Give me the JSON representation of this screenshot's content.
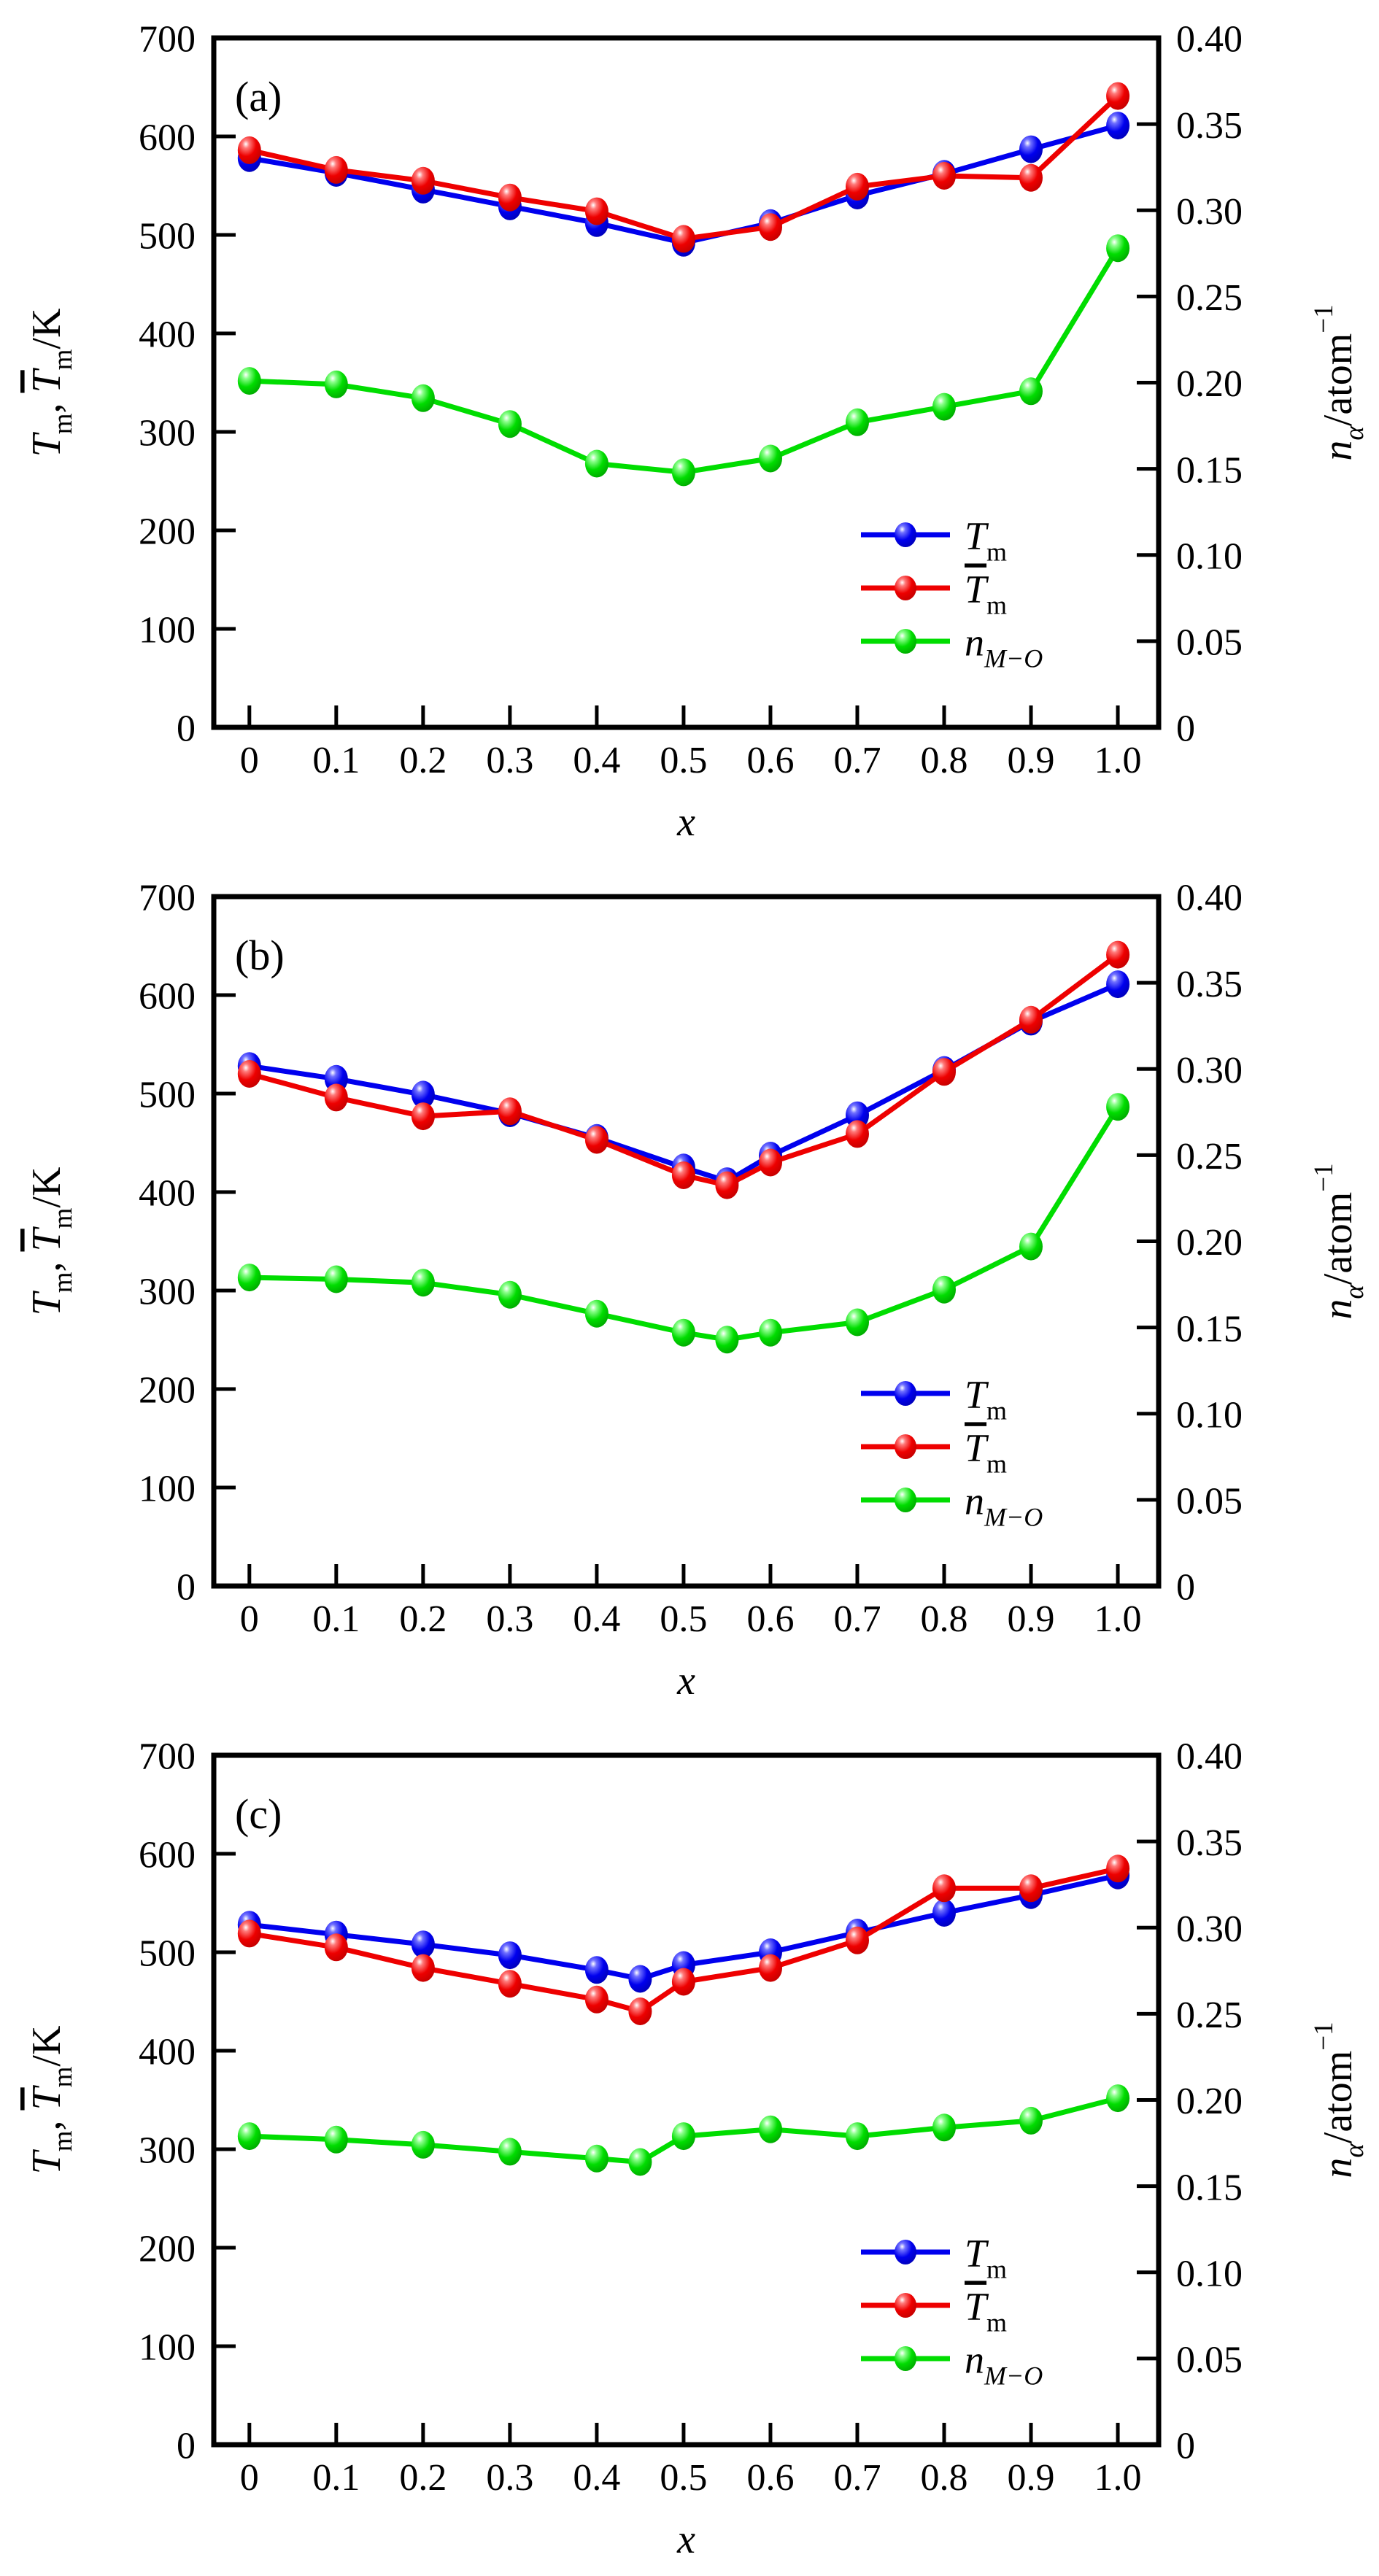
{
  "chart_data": [
    {
      "type": "line",
      "panel_label": "(a)",
      "x_label": "x",
      "y_left_label": "Tm, Tm(bar)/K",
      "y_right_label": "n_alpha/atom^-1",
      "x": [
        0,
        0.1,
        0.2,
        0.3,
        0.4,
        0.5,
        0.6,
        0.7,
        0.8,
        0.9,
        1.0
      ],
      "series": [
        {
          "name": "Tm",
          "axis": "left",
          "color_key": "blue",
          "values": [
            578,
            563,
            546,
            529,
            512,
            492,
            512,
            540,
            562,
            587,
            611
          ]
        },
        {
          "name": "Tm_bar",
          "axis": "left",
          "color_key": "red",
          "values": [
            586,
            566,
            555,
            538,
            524,
            496,
            508,
            549,
            560,
            558,
            641
          ]
        },
        {
          "name": "n_M-O",
          "axis": "right",
          "color_key": "green",
          "values": [
            0.201,
            0.199,
            0.191,
            0.176,
            0.153,
            0.148,
            0.156,
            0.177,
            0.186,
            0.195,
            0.278
          ]
        }
      ],
      "xlim": [
        -0.041,
        1.047
      ],
      "ylim_left": [
        0,
        700
      ],
      "ylim_right": [
        0,
        0.4
      ],
      "grid": false,
      "legend_position": "inside lower right",
      "left_ticks": [
        0,
        100,
        200,
        300,
        400,
        500,
        600,
        700
      ],
      "left_tick_labels": [
        "0",
        "100",
        "200",
        "300",
        "400",
        "500",
        "600",
        "700"
      ],
      "right_ticks": [
        0,
        0.05,
        0.1,
        0.15,
        0.2,
        0.25,
        0.3,
        0.35,
        0.4
      ],
      "right_tick_labels": [
        "0",
        "0.05",
        "0.10",
        "0.15",
        "0.20",
        "0.25",
        "0.30",
        "0.35",
        "0.40"
      ],
      "x_ticks": [
        0,
        0.1,
        0.2,
        0.3,
        0.4,
        0.5,
        0.6,
        0.7,
        0.8,
        0.9,
        1.0
      ],
      "x_tick_labels": [
        "0",
        "0.1",
        "0.2",
        "0.3",
        "0.4",
        "0.5",
        "0.6",
        "0.7",
        "0.8",
        "0.9",
        "1.0"
      ]
    },
    {
      "type": "line",
      "panel_label": "(b)",
      "x_label": "x",
      "y_left_label": "Tm, Tm(bar)/K",
      "y_right_label": "n_alpha/atom^-1",
      "x": [
        0,
        0.1,
        0.2,
        0.3,
        0.4,
        0.5,
        0.55,
        0.6,
        0.7,
        0.8,
        0.9,
        1.0
      ],
      "series": [
        {
          "name": "Tm",
          "axis": "left",
          "color_key": "blue",
          "values": [
            528,
            515,
            499,
            480,
            455,
            425,
            411,
            437,
            478,
            524,
            573,
            611
          ]
        },
        {
          "name": "Tm_bar",
          "axis": "left",
          "color_key": "red",
          "values": [
            520,
            496,
            477,
            482,
            453,
            417,
            407,
            430,
            459,
            522,
            575,
            641
          ]
        },
        {
          "name": "n_M-O",
          "axis": "right",
          "color_key": "green",
          "values": [
            0.179,
            0.178,
            0.176,
            0.169,
            0.158,
            0.147,
            0.143,
            0.147,
            0.153,
            0.172,
            0.197,
            0.278
          ]
        }
      ],
      "xlim": [
        -0.041,
        1.047
      ],
      "ylim_left": [
        0,
        700
      ],
      "ylim_right": [
        0,
        0.4
      ],
      "grid": false,
      "legend_position": "inside lower right",
      "left_ticks": [
        0,
        100,
        200,
        300,
        400,
        500,
        600,
        700
      ],
      "left_tick_labels": [
        "0",
        "100",
        "200",
        "300",
        "400",
        "500",
        "600",
        "700"
      ],
      "right_ticks": [
        0,
        0.05,
        0.1,
        0.15,
        0.2,
        0.25,
        0.3,
        0.35,
        0.4
      ],
      "right_tick_labels": [
        "0",
        "0.05",
        "0.10",
        "0.15",
        "0.20",
        "0.25",
        "0.30",
        "0.35",
        "0.40"
      ],
      "x_ticks": [
        0,
        0.1,
        0.2,
        0.3,
        0.4,
        0.5,
        0.6,
        0.7,
        0.8,
        0.9,
        1.0
      ],
      "x_tick_labels": [
        "0",
        "0.1",
        "0.2",
        "0.3",
        "0.4",
        "0.5",
        "0.6",
        "0.7",
        "0.8",
        "0.9",
        "1.0"
      ]
    },
    {
      "type": "line",
      "panel_label": "(c)",
      "x_label": "x",
      "y_left_label": "Tm, Tm(bar)/K",
      "y_right_label": "n_alpha/atom^-1",
      "x": [
        0,
        0.1,
        0.2,
        0.3,
        0.4,
        0.45,
        0.5,
        0.6,
        0.7,
        0.8,
        0.9,
        1.0
      ],
      "series": [
        {
          "name": "Tm",
          "axis": "left",
          "color_key": "blue",
          "values": [
            528,
            518,
            508,
            497,
            482,
            473,
            487,
            500,
            520,
            540,
            558,
            578
          ]
        },
        {
          "name": "Tm_bar",
          "axis": "left",
          "color_key": "red",
          "values": [
            519,
            505,
            484,
            468,
            452,
            440,
            470,
            484,
            512,
            565,
            565,
            585
          ]
        },
        {
          "name": "n_M-O",
          "axis": "right",
          "color_key": "green",
          "values": [
            0.179,
            0.177,
            0.174,
            0.17,
            0.166,
            0.164,
            0.179,
            0.183,
            0.179,
            0.184,
            0.188,
            0.201
          ]
        }
      ],
      "xlim": [
        -0.041,
        1.047
      ],
      "ylim_left": [
        0,
        700
      ],
      "ylim_right": [
        0,
        0.4
      ],
      "grid": false,
      "legend_position": "inside lower right",
      "left_ticks": [
        0,
        100,
        200,
        300,
        400,
        500,
        600,
        700
      ],
      "left_tick_labels": [
        "0",
        "100",
        "200",
        "300",
        "400",
        "500",
        "600",
        "700"
      ],
      "right_ticks": [
        0,
        0.05,
        0.1,
        0.15,
        0.2,
        0.25,
        0.3,
        0.35,
        0.4
      ],
      "right_tick_labels": [
        "0",
        "0.05",
        "0.10",
        "0.15",
        "0.20",
        "0.25",
        "0.30",
        "0.35",
        "0.40"
      ],
      "x_ticks": [
        0,
        0.1,
        0.2,
        0.3,
        0.4,
        0.5,
        0.6,
        0.7,
        0.8,
        0.9,
        1.0
      ],
      "x_tick_labels": [
        "0",
        "0.1",
        "0.2",
        "0.3",
        "0.4",
        "0.5",
        "0.6",
        "0.7",
        "0.8",
        "0.9",
        "1.0"
      ]
    }
  ],
  "axes_text": {
    "left_label_parts": [
      {
        "t": "T",
        "i": true
      },
      {
        "t": "m",
        "sub": true
      },
      {
        "t": ", "
      },
      {
        "t": "T",
        "i": true,
        "ol": true
      },
      {
        "t": "m",
        "sub": true
      },
      {
        "t": "/K"
      }
    ],
    "right_label_parts": [
      {
        "t": "n",
        "i": true
      },
      {
        "t": "α",
        "sub": true,
        "i": true
      },
      {
        "t": "/atom"
      },
      {
        "t": "−1",
        "sup": true
      }
    ],
    "x_label": "x"
  },
  "legend_items": [
    {
      "name": "Tm",
      "color_key": "blue",
      "parts": [
        {
          "t": "T",
          "i": true
        },
        {
          "t": "m",
          "sub": true
        }
      ]
    },
    {
      "name": "Tm_bar",
      "color_key": "red",
      "parts": [
        {
          "t": "T",
          "i": true,
          "ol": true
        },
        {
          "t": "m",
          "sub": true
        }
      ]
    },
    {
      "name": "n_M-O",
      "color_key": "green",
      "parts": [
        {
          "t": "n",
          "i": true
        },
        {
          "t": "M−O",
          "sub": true,
          "i": true
        }
      ]
    }
  ],
  "colors": {
    "blue": {
      "line": "#0000EE",
      "light": "#7070FF",
      "dark": "#0000B4"
    },
    "red": {
      "line": "#EE0000",
      "light": "#FF7A7A",
      "dark": "#C00000"
    },
    "green": {
      "line": "#00DD00",
      "light": "#8CFF8C",
      "dark": "#00A400"
    },
    "axis": "#000000",
    "background": "#FFFFFF"
  }
}
